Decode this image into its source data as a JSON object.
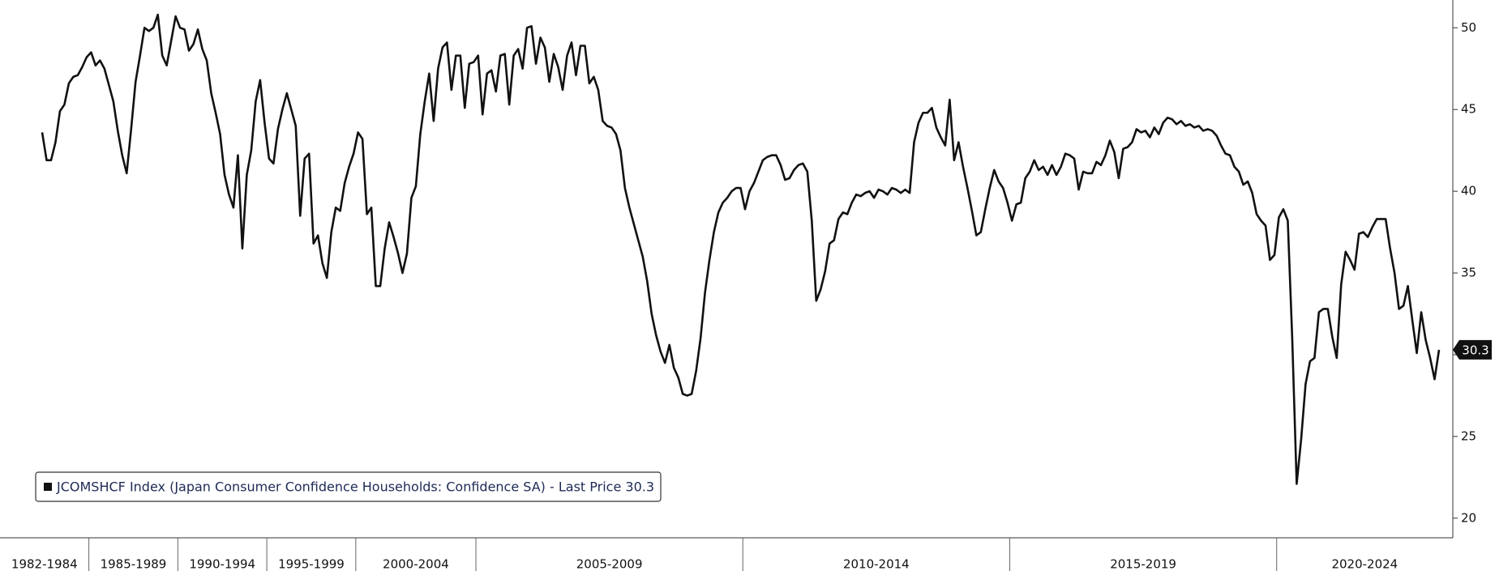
{
  "chart_data": {
    "type": "line",
    "series_name": "JCOMSHCF Index (Japan Consumer Confidence Households: Confidence SA) - Last Price 30.3",
    "color": "#111111",
    "groups": [
      {
        "label": "1982-1984",
        "values": [
          43.6,
          41.9,
          41.9,
          43,
          44.9,
          45.3,
          46.6,
          47,
          47.1,
          47.6,
          48.2
        ]
      },
      {
        "label": "1985-1989",
        "values": [
          48.5,
          47.7,
          48,
          47.5,
          46.5,
          45.5,
          43.7,
          42.2,
          41.1,
          43.8,
          46.7,
          48.3,
          50,
          49.8,
          50,
          50.8,
          48.3,
          47.7,
          49.2,
          50.7
        ]
      },
      {
        "label": "1990-1994",
        "values": [
          50,
          49.9,
          48.6,
          49,
          49.9,
          48.7,
          48,
          46,
          44.8,
          43.5,
          41,
          39.8,
          39,
          42.2,
          36.5,
          41,
          42.5,
          45.5,
          46.8,
          44.2
        ]
      },
      {
        "label": "1995-1999",
        "values": [
          42,
          41.7,
          43.8,
          45,
          46,
          45,
          44,
          38.5,
          42,
          42.3,
          36.8,
          37.3,
          35.6,
          34.7,
          37.5,
          39,
          38.8,
          40.5,
          41.5,
          42.3
        ]
      },
      {
        "label": "2000-2004",
        "values": [
          43.6,
          43.2,
          38.6,
          39,
          34.2,
          34.2,
          36.5,
          38.1,
          37.2,
          36.2,
          35,
          36.2,
          39.6,
          40.3,
          43.5,
          45.5,
          47.2,
          44.3,
          47.5,
          48.8,
          49.1,
          46.2,
          48.3,
          48.3,
          45.1,
          47.8,
          47.9
        ]
      },
      {
        "label": "2005-2009",
        "values": [
          48.3,
          44.7,
          47.2,
          47.4,
          46.1,
          48.3,
          48.4,
          45.3,
          48.3,
          48.7,
          47.5,
          50,
          50.1,
          47.8,
          49.4,
          48.8,
          46.7,
          48.4,
          47.6,
          46.2,
          48.3,
          49.1,
          47.1,
          48.9,
          48.9,
          46.6,
          47,
          46.2,
          44.3,
          44,
          43.9,
          43.5,
          42.5,
          40.2,
          39,
          38,
          37,
          36,
          34.5,
          32.5,
          31.2,
          30.2,
          29.5,
          30.6,
          29.2,
          28.6,
          27.6,
          27.5,
          27.6,
          29,
          31,
          33.8,
          35.8,
          37.5,
          38.7,
          39.3,
          39.6,
          40,
          40.2,
          40.2
        ]
      },
      {
        "label": "2010-2014",
        "values": [
          38.9,
          40,
          40.5,
          41.2,
          41.9,
          42.1,
          42.2,
          42.2,
          41.6,
          40.7,
          40.8,
          41.3,
          41.6,
          41.7,
          41.2,
          38.2,
          33.3,
          34,
          35.1,
          36.8,
          37,
          38.3,
          38.7,
          38.6,
          39.3,
          39.8,
          39.7,
          39.9,
          40,
          39.6,
          40.1,
          40,
          39.8,
          40.2,
          40.1,
          39.9,
          40.1,
          39.9,
          43,
          44.2,
          44.8,
          44.8,
          45.1,
          43.9,
          43.3,
          42.8,
          45.6,
          41.9,
          43,
          41.5,
          40.2,
          38.8,
          37.3,
          37.5,
          38.9,
          40.2,
          41.3,
          40.6,
          40.2,
          39.3
        ]
      },
      {
        "label": "2015-2019",
        "values": [
          38.2,
          39.2,
          39.3,
          40.8,
          41.2,
          41.9,
          41.3,
          41.5,
          41,
          41.6,
          41,
          41.5,
          42.3,
          42.2,
          42,
          40.1,
          41.2,
          41.1,
          41.1,
          41.8,
          41.6,
          42.2,
          43.1,
          42.4,
          40.8,
          42.6,
          42.7,
          43,
          43.8,
          43.6,
          43.7,
          43.3,
          43.9,
          43.5,
          44.2,
          44.5,
          44.4,
          44.1,
          44.3,
          44,
          44.1,
          43.9,
          44,
          43.7,
          43.8,
          43.7,
          43.4,
          42.8,
          42.3,
          42.2,
          41.5,
          41.2,
          40.4,
          40.6,
          39.9,
          38.6,
          38.2,
          37.9,
          35.8,
          36.1
        ]
      },
      {
        "label": "2020-2024",
        "values": [
          38.4,
          38.9,
          38.2,
          31,
          22.1,
          24.8,
          28.2,
          29.6,
          29.8,
          32.6,
          32.8,
          32.8,
          31.1,
          29.8,
          34.3,
          36.3,
          35.8,
          35.2,
          37.4,
          37.5,
          37.2,
          37.8,
          38.3,
          38.3,
          38.3,
          36.5,
          35,
          32.8,
          33,
          34.2,
          32.1,
          30.1,
          32.6,
          30.9,
          29.8,
          28.5,
          30.3
        ]
      }
    ],
    "ylim": [
      18.8,
      51.7
    ],
    "yticks": [
      20,
      25,
      30,
      35,
      40,
      45,
      50
    ]
  }
}
